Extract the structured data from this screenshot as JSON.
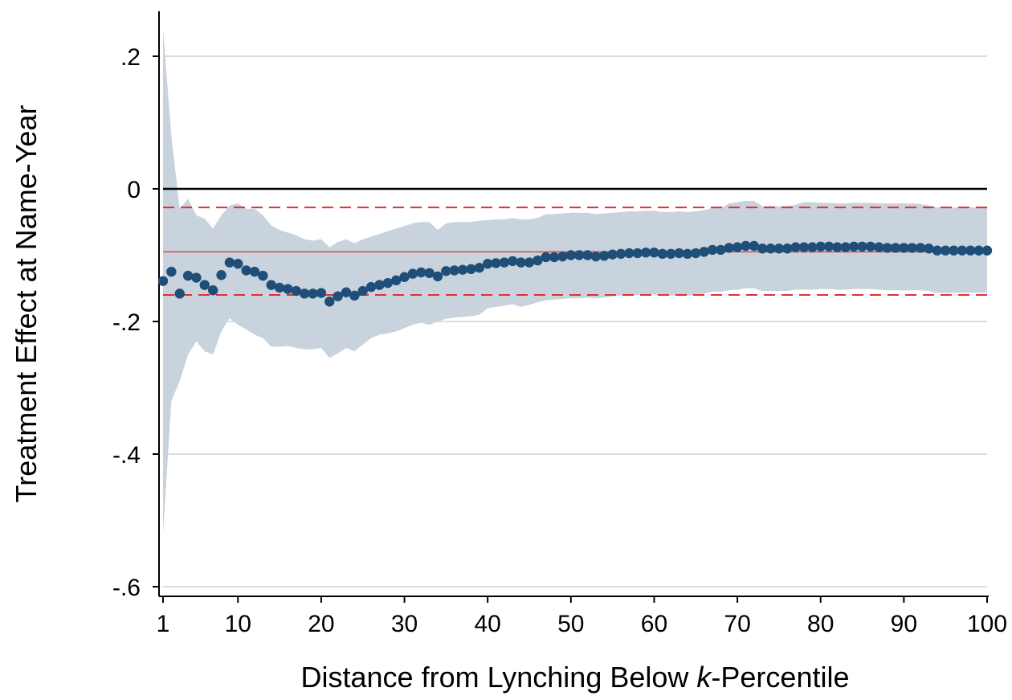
{
  "chart_data": {
    "type": "scatter",
    "title": "",
    "xlabel_parts": [
      "Distance from Lynching Below ",
      "k",
      "-Percentile"
    ],
    "ylabel": "Treatment Effect at Name-Year",
    "xlim": [
      1,
      100
    ],
    "ylim": [
      -0.62,
      0.27
    ],
    "x_ticks": [
      1,
      10,
      20,
      30,
      40,
      50,
      60,
      70,
      80,
      90,
      100
    ],
    "x_tick_labels": [
      "1",
      "10",
      "20",
      "30",
      "40",
      "50",
      "60",
      "70",
      "80",
      "90",
      "100"
    ],
    "y_ticks": [
      0.2,
      0,
      -0.2,
      -0.4,
      -0.6
    ],
    "y_tick_labels": [
      ".2",
      "0",
      "-.2",
      "-.4",
      "-.6"
    ],
    "grid": true,
    "legend": "none",
    "zero_line": 0,
    "reference_lines": {
      "estimate": -0.095,
      "ci_lower": -0.16,
      "ci_upper": -0.028
    },
    "colors": {
      "points": "#1f4e79",
      "band": "#c8d3dd",
      "ref_line": "#e03030",
      "zero_line": "#000000",
      "grid": "#d0d0d0"
    },
    "series": [
      {
        "x": [
          1,
          2,
          3,
          4,
          5,
          6,
          7,
          8,
          9,
          10,
          11,
          12,
          13,
          14,
          15,
          16,
          17,
          18,
          19,
          20,
          21,
          22,
          23,
          24,
          25,
          26,
          27,
          28,
          29,
          30,
          31,
          32,
          33,
          34,
          35,
          36,
          37,
          38,
          39,
          40,
          41,
          42,
          43,
          44,
          45,
          46,
          47,
          48,
          49,
          50,
          51,
          52,
          53,
          54,
          55,
          56,
          57,
          58,
          59,
          60,
          61,
          62,
          63,
          64,
          65,
          66,
          67,
          68,
          69,
          70,
          71,
          72,
          73,
          74,
          75,
          76,
          77,
          78,
          79,
          80,
          81,
          82,
          83,
          84,
          85,
          86,
          87,
          88,
          89,
          90,
          91,
          92,
          93,
          94,
          95,
          96,
          97,
          98,
          99,
          100
        ],
        "values": [
          -0.139,
          -0.125,
          -0.158,
          -0.131,
          -0.134,
          -0.145,
          -0.153,
          -0.13,
          -0.111,
          -0.113,
          -0.123,
          -0.125,
          -0.131,
          -0.145,
          -0.149,
          -0.151,
          -0.154,
          -0.158,
          -0.158,
          -0.157,
          -0.17,
          -0.162,
          -0.156,
          -0.161,
          -0.154,
          -0.148,
          -0.145,
          -0.142,
          -0.138,
          -0.133,
          -0.128,
          -0.126,
          -0.127,
          -0.132,
          -0.124,
          -0.123,
          -0.122,
          -0.121,
          -0.119,
          -0.113,
          -0.112,
          -0.111,
          -0.109,
          -0.111,
          -0.111,
          -0.108,
          -0.103,
          -0.103,
          -0.102,
          -0.1,
          -0.1,
          -0.1,
          -0.102,
          -0.101,
          -0.099,
          -0.098,
          -0.097,
          -0.097,
          -0.096,
          -0.096,
          -0.098,
          -0.098,
          -0.097,
          -0.098,
          -0.097,
          -0.095,
          -0.092,
          -0.092,
          -0.089,
          -0.088,
          -0.086,
          -0.086,
          -0.09,
          -0.09,
          -0.09,
          -0.09,
          -0.088,
          -0.088,
          -0.088,
          -0.087,
          -0.087,
          -0.088,
          -0.088,
          -0.087,
          -0.087,
          -0.087,
          -0.088,
          -0.089,
          -0.089,
          -0.089,
          -0.089,
          -0.089,
          -0.09,
          -0.093,
          -0.093,
          -0.093,
          -0.093,
          -0.093,
          -0.093,
          -0.093
        ],
        "ci_lower": [
          -0.52,
          -0.32,
          -0.29,
          -0.25,
          -0.23,
          -0.245,
          -0.25,
          -0.215,
          -0.195,
          -0.205,
          -0.212,
          -0.22,
          -0.225,
          -0.238,
          -0.238,
          -0.237,
          -0.24,
          -0.242,
          -0.242,
          -0.24,
          -0.255,
          -0.248,
          -0.24,
          -0.245,
          -0.235,
          -0.225,
          -0.22,
          -0.218,
          -0.215,
          -0.21,
          -0.205,
          -0.202,
          -0.205,
          -0.2,
          -0.196,
          -0.194,
          -0.193,
          -0.192,
          -0.19,
          -0.18,
          -0.178,
          -0.176,
          -0.174,
          -0.178,
          -0.175,
          -0.171,
          -0.168,
          -0.167,
          -0.166,
          -0.165,
          -0.165,
          -0.164,
          -0.165,
          -0.164,
          -0.162,
          -0.161,
          -0.16,
          -0.16,
          -0.159,
          -0.159,
          -0.161,
          -0.161,
          -0.16,
          -0.161,
          -0.16,
          -0.158,
          -0.155,
          -0.155,
          -0.153,
          -0.152,
          -0.15,
          -0.15,
          -0.154,
          -0.154,
          -0.154,
          -0.154,
          -0.152,
          -0.152,
          -0.152,
          -0.151,
          -0.151,
          -0.152,
          -0.152,
          -0.151,
          -0.151,
          -0.151,
          -0.152,
          -0.153,
          -0.153,
          -0.153,
          -0.153,
          -0.153,
          -0.154,
          -0.157,
          -0.157,
          -0.157,
          -0.157,
          -0.157,
          -0.157,
          -0.157
        ],
        "ci_upper": [
          0.24,
          0.08,
          -0.03,
          -0.015,
          -0.04,
          -0.045,
          -0.06,
          -0.04,
          -0.025,
          -0.022,
          -0.03,
          -0.03,
          -0.04,
          -0.055,
          -0.062,
          -0.066,
          -0.07,
          -0.076,
          -0.078,
          -0.076,
          -0.088,
          -0.08,
          -0.076,
          -0.082,
          -0.076,
          -0.072,
          -0.068,
          -0.064,
          -0.06,
          -0.056,
          -0.052,
          -0.05,
          -0.05,
          -0.062,
          -0.052,
          -0.05,
          -0.05,
          -0.05,
          -0.048,
          -0.047,
          -0.046,
          -0.046,
          -0.044,
          -0.046,
          -0.046,
          -0.044,
          -0.038,
          -0.038,
          -0.037,
          -0.036,
          -0.036,
          -0.036,
          -0.038,
          -0.037,
          -0.036,
          -0.035,
          -0.034,
          -0.034,
          -0.033,
          -0.033,
          -0.035,
          -0.035,
          -0.034,
          -0.035,
          -0.034,
          -0.032,
          -0.029,
          -0.029,
          -0.022,
          -0.02,
          -0.018,
          -0.018,
          -0.026,
          -0.026,
          -0.026,
          -0.026,
          -0.024,
          -0.02,
          -0.02,
          -0.021,
          -0.021,
          -0.022,
          -0.022,
          -0.021,
          -0.021,
          -0.021,
          -0.022,
          -0.022,
          -0.022,
          -0.022,
          -0.022,
          -0.023,
          -0.025,
          -0.028,
          -0.028,
          -0.028,
          -0.028,
          -0.028,
          -0.028,
          -0.028
        ]
      }
    ]
  }
}
